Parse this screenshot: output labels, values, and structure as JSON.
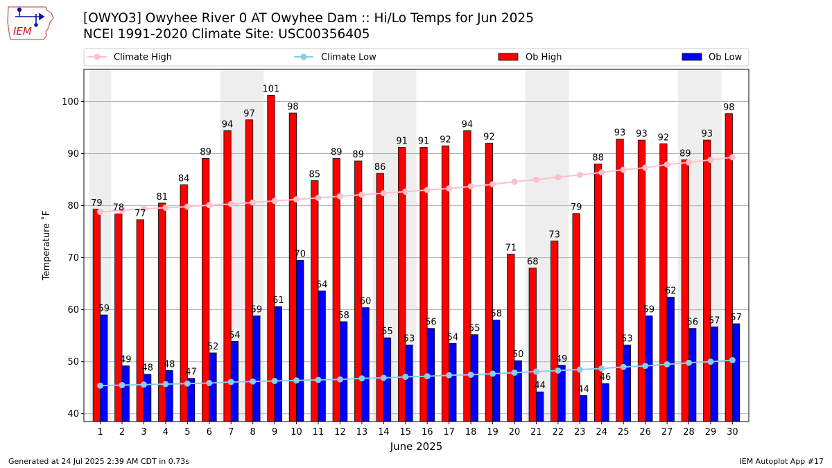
{
  "header": {
    "title_line1": "[OWYO3] Owyhee River 0 AT Owyhee Dam :: Hi/Lo Temps for Jun 2025",
    "title_line2": "NCEI 1991-2020 Climate Site: USC00356405"
  },
  "logo": {
    "text": "IEM",
    "icon": "iem-iowa-weather-logo"
  },
  "footer": {
    "generated": "Generated at 24 Jul 2025 2:39 AM CDT in 0.73s",
    "app": "IEM Autoplot App #17"
  },
  "colors": {
    "ob_high": "#ff0000",
    "ob_low": "#0000ff",
    "climate_high": "#ffc0cb",
    "climate_low": "#87ceeb",
    "weekend_band": "#eeeeee"
  },
  "chart_data": {
    "type": "bar",
    "xlabel": "June 2025",
    "ylabel": "Temperature $^\\circ$F",
    "ylabel_display": "Temperature ˚F",
    "ylim": [
      38.5,
      106.2
    ],
    "yticks": [
      40,
      50,
      60,
      70,
      80,
      90,
      100
    ],
    "grid": true,
    "legend_placement": "top, above plot",
    "categories": [
      1,
      2,
      3,
      4,
      5,
      6,
      7,
      8,
      9,
      10,
      11,
      12,
      13,
      14,
      15,
      16,
      17,
      18,
      19,
      20,
      21,
      22,
      23,
      24,
      25,
      26,
      27,
      28,
      29,
      30
    ],
    "shaded_days": [
      1,
      7,
      8,
      14,
      15,
      21,
      22,
      28,
      29
    ],
    "series": [
      {
        "name": "Ob High",
        "kind": "bar",
        "color": "#ff0000",
        "values": [
          79,
          78,
          77,
          81,
          84,
          89,
          94,
          97,
          101,
          98,
          85,
          89,
          89,
          86,
          91,
          91,
          92,
          94,
          92,
          71,
          68,
          73,
          79,
          88,
          93,
          93,
          92,
          89,
          93,
          98
        ],
        "exact": [
          79.3,
          78.4,
          77.3,
          80.5,
          84.0,
          89.1,
          94.4,
          96.5,
          101.2,
          97.8,
          84.8,
          89.1,
          88.6,
          86.2,
          91.2,
          91.2,
          91.5,
          94.4,
          92.0,
          70.7,
          68.0,
          73.2,
          78.5,
          88.0,
          92.8,
          92.6,
          91.9,
          88.8,
          92.6,
          97.7
        ]
      },
      {
        "name": "Ob Low",
        "kind": "bar",
        "color": "#0000ff",
        "values": [
          59,
          49,
          48,
          48,
          47,
          52,
          54,
          59,
          61,
          70,
          64,
          58,
          60,
          55,
          53,
          56,
          54,
          55,
          58,
          50,
          44,
          49,
          44,
          46,
          53,
          59,
          62,
          56,
          57,
          57
        ],
        "exact": [
          59.0,
          49.2,
          47.6,
          48.3,
          46.8,
          51.7,
          53.9,
          58.8,
          60.6,
          69.5,
          63.6,
          57.7,
          60.4,
          54.6,
          53.2,
          56.4,
          53.5,
          55.2,
          58.0,
          50.2,
          44.2,
          49.3,
          43.5,
          45.8,
          53.2,
          58.8,
          62.4,
          56.4,
          56.7,
          57.3
        ]
      },
      {
        "name": "Climate High",
        "kind": "line",
        "color": "#ffc0cb",
        "values": [
          78.8,
          79.1,
          79.4,
          79.6,
          79.8,
          80.1,
          80.3,
          80.6,
          80.9,
          81.2,
          81.5,
          81.8,
          82.1,
          82.4,
          82.7,
          83.0,
          83.3,
          83.7,
          84.1,
          84.6,
          85.0,
          85.5,
          85.9,
          86.4,
          86.9,
          87.3,
          87.9,
          88.3,
          88.8,
          89.3
        ]
      },
      {
        "name": "Climate Low",
        "kind": "line",
        "color": "#87ceeb",
        "values": [
          45.4,
          45.5,
          45.6,
          45.7,
          45.8,
          45.9,
          46.1,
          46.2,
          46.3,
          46.4,
          46.5,
          46.6,
          46.8,
          46.9,
          47.1,
          47.2,
          47.4,
          47.5,
          47.7,
          47.9,
          48.1,
          48.3,
          48.5,
          48.7,
          49.0,
          49.2,
          49.5,
          49.8,
          50.0,
          50.3
        ]
      }
    ]
  }
}
